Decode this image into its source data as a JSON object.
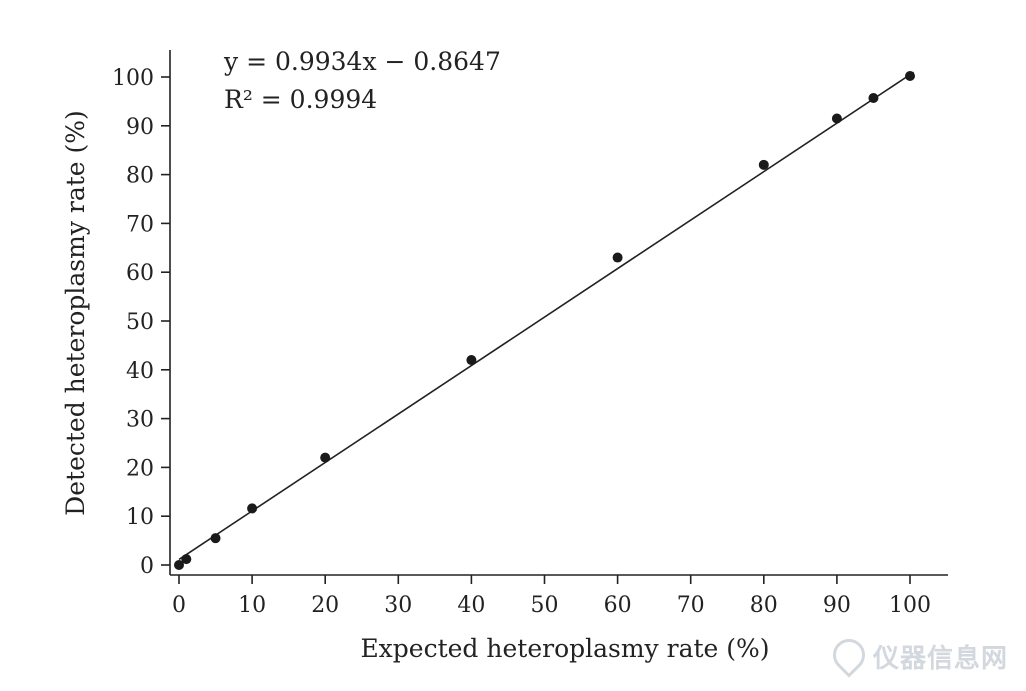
{
  "chart_data": {
    "type": "scatter",
    "xlabel": "Expected heteroplasmy rate (%)",
    "ylabel": "Detected heteroplasmy rate (%)",
    "xlim": [
      0,
      100
    ],
    "ylim": [
      0,
      100
    ],
    "xticks": [
      0,
      10,
      20,
      30,
      40,
      50,
      60,
      70,
      80,
      90,
      100
    ],
    "yticks": [
      0,
      10,
      20,
      30,
      40,
      50,
      60,
      70,
      80,
      90,
      100
    ],
    "grid": false,
    "series": [
      {
        "x": [
          0,
          1,
          5,
          10,
          20,
          40,
          60,
          80,
          90,
          95,
          100
        ],
        "y": [
          0,
          1.2,
          5.5,
          11.6,
          22,
          42,
          63,
          82,
          91.5,
          95.7,
          100.2
        ]
      }
    ],
    "trendline": {
      "slope": 0.9934,
      "intercept": -0.8647
    },
    "annotations": {
      "equation": "y = 0.9934x − 0.8647",
      "r_squared": "R² = 0.9994"
    }
  },
  "watermark": {
    "text": "仪器信息网"
  }
}
